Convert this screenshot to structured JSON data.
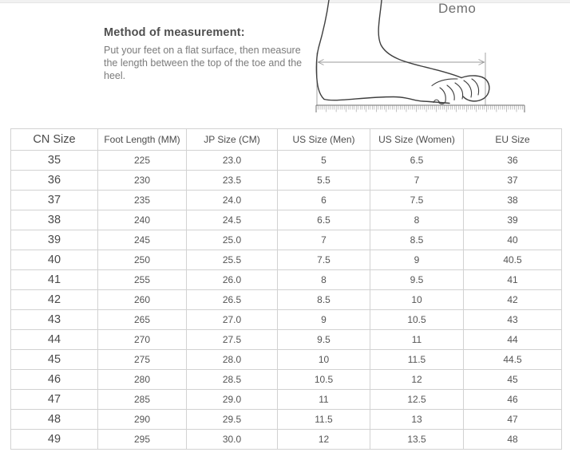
{
  "instructions": {
    "title": "Method of measurement:",
    "body": "Put your feet on a flat surface,  then measure the length between the top of the toe and the heel."
  },
  "diagram": {
    "label": "Demo"
  },
  "size_chart": {
    "columns": [
      "CN Size",
      "Foot Length (MM)",
      "JP Size (CM)",
      "US Size (Men)",
      "US Size (Women)",
      "EU Size"
    ],
    "rows": [
      [
        "35",
        "225",
        "23.0",
        "5",
        "6.5",
        "36"
      ],
      [
        "36",
        "230",
        "23.5",
        "5.5",
        "7",
        "37"
      ],
      [
        "37",
        "235",
        "24.0",
        "6",
        "7.5",
        "38"
      ],
      [
        "38",
        "240",
        "24.5",
        "6.5",
        "8",
        "39"
      ],
      [
        "39",
        "245",
        "25.0",
        "7",
        "8.5",
        "40"
      ],
      [
        "40",
        "250",
        "25.5",
        "7.5",
        "9",
        "40.5"
      ],
      [
        "41",
        "255",
        "26.0",
        "8",
        "9.5",
        "41"
      ],
      [
        "42",
        "260",
        "26.5",
        "8.5",
        "10",
        "42"
      ],
      [
        "43",
        "265",
        "27.0",
        "9",
        "10.5",
        "43"
      ],
      [
        "44",
        "270",
        "27.5",
        "9.5",
        "11",
        "44"
      ],
      [
        "45",
        "275",
        "28.0",
        "10",
        "11.5",
        "44.5"
      ],
      [
        "46",
        "280",
        "28.5",
        "10.5",
        "12",
        "45"
      ],
      [
        "47",
        "285",
        "29.0",
        "11",
        "12.5",
        "46"
      ],
      [
        "48",
        "290",
        "29.5",
        "11.5",
        "13",
        "47"
      ],
      [
        "49",
        "295",
        "30.0",
        "12",
        "13.5",
        "48"
      ]
    ]
  },
  "colors": {
    "table_border": "#d2d2d2",
    "table_text": "#555555",
    "heading_text": "#4f4f4f",
    "body_text": "#7b7b7b",
    "foot_outline": "#3f3f3f",
    "measure_line": "#9a9a9a",
    "ruler_line": "#8a8a8a"
  }
}
